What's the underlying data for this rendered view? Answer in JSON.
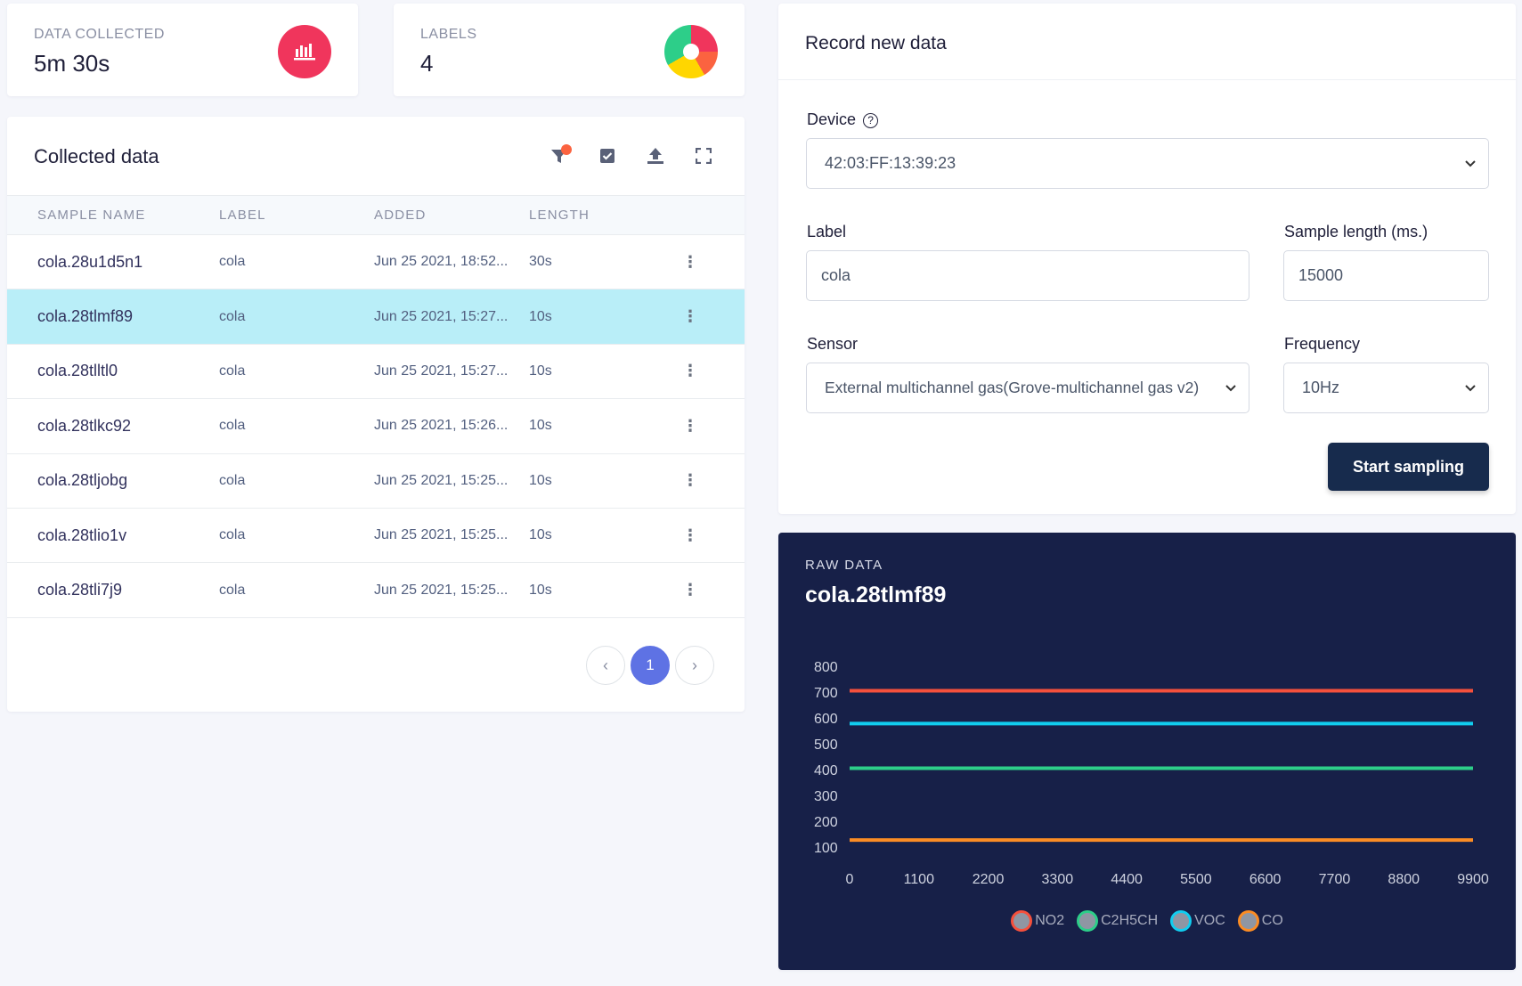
{
  "stats": [
    {
      "label": "DATA COLLECTED",
      "value": "5m 30s",
      "icon": "bar-chart-icon"
    },
    {
      "label": "LABELS",
      "value": "4",
      "icon": "donut-chart-icon"
    }
  ],
  "collected": {
    "title": "Collected data",
    "tools": [
      "filter-icon",
      "select-icon",
      "upload-icon",
      "fullscreen-icon"
    ],
    "columns": [
      "SAMPLE NAME",
      "LABEL",
      "ADDED",
      "LENGTH"
    ],
    "rows": [
      {
        "name": "cola.28u1d5n1",
        "label": "cola",
        "added": "Jun 25 2021, 18:52...",
        "length": "30s"
      },
      {
        "name": "cola.28tlmf89",
        "label": "cola",
        "added": "Jun 25 2021, 15:27...",
        "length": "10s"
      },
      {
        "name": "cola.28tlltl0",
        "label": "cola",
        "added": "Jun 25 2021, 15:27...",
        "length": "10s"
      },
      {
        "name": "cola.28tlkc92",
        "label": "cola",
        "added": "Jun 25 2021, 15:26...",
        "length": "10s"
      },
      {
        "name": "cola.28tljobg",
        "label": "cola",
        "added": "Jun 25 2021, 15:25...",
        "length": "10s"
      },
      {
        "name": "cola.28tlio1v",
        "label": "cola",
        "added": "Jun 25 2021, 15:25...",
        "length": "10s"
      },
      {
        "name": "cola.28tli7j9",
        "label": "cola",
        "added": "Jun 25 2021, 15:25...",
        "length": "10s"
      }
    ],
    "page": "1"
  },
  "record": {
    "title": "Record new data",
    "device_label": "Device",
    "device_value": "42:03:FF:13:39:23",
    "label_label": "Label",
    "label_value": "cola",
    "length_label": "Sample length (ms.)",
    "length_value": "15000",
    "sensor_label": "Sensor",
    "sensor_value": "External multichannel gas(Grove-multichannel gas v2)",
    "freq_label": "Frequency",
    "freq_value": "10Hz",
    "button": "Start sampling"
  },
  "raw": {
    "kicker": "RAW DATA",
    "title": "cola.28tlmf89"
  },
  "chart_data": {
    "type": "line",
    "title": "",
    "xlabel": "",
    "ylabel": "",
    "x_ticks": [
      0,
      1100,
      2200,
      3300,
      4400,
      5500,
      6600,
      7700,
      8800,
      9900
    ],
    "y_ticks": [
      100,
      200,
      300,
      400,
      500,
      600,
      700,
      800
    ],
    "xlim": [
      0,
      9900
    ],
    "ylim": [
      100,
      800
    ],
    "grid": false,
    "legend": "bottom",
    "series": [
      {
        "name": "NO2",
        "color": "#f5503c",
        "x": [
          0,
          9900
        ],
        "values": [
          705,
          705
        ]
      },
      {
        "name": "C2H5CH",
        "color": "#2dce89",
        "x": [
          0,
          9900
        ],
        "values": [
          405,
          405
        ]
      },
      {
        "name": "VOC",
        "color": "#11cdef",
        "x": [
          0,
          9900
        ],
        "values": [
          578,
          578
        ]
      },
      {
        "name": "CO",
        "color": "#fb8c24",
        "x": [
          0,
          9900
        ],
        "values": [
          127,
          127
        ]
      }
    ]
  }
}
